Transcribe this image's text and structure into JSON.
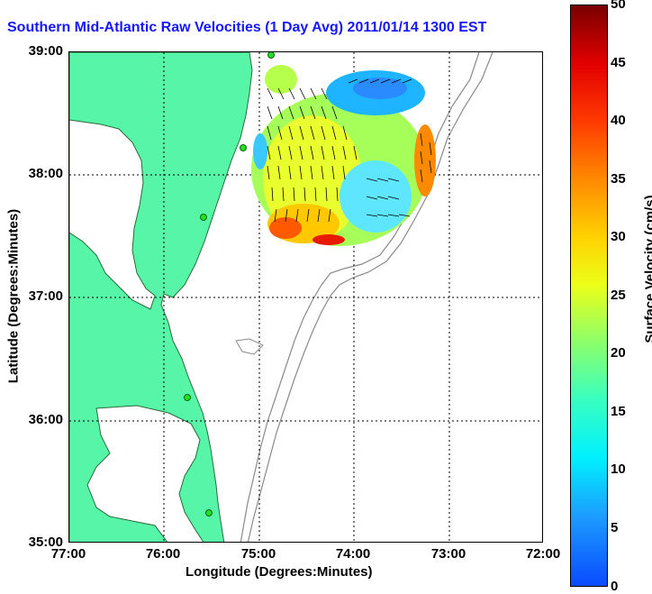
{
  "title": "Southern Mid-Atlantic Raw Velocities (1 Day Avg) 2011/01/14 1300 EST",
  "xlabel": "Longitude (Degrees:Minutes)",
  "ylabel": "Latitude (Degrees:Minutes)",
  "x_ticks": [
    "77:00",
    "76:00",
    "75:00",
    "74:00",
    "73:00",
    "72:00"
  ],
  "y_ticks": [
    "39:00",
    "38:00",
    "37:00",
    "36:00",
    "35:00"
  ],
  "colorbar": {
    "label": "Surface Velocity (cm/s)",
    "ticks": [
      "50",
      "45",
      "40",
      "35",
      "30",
      "25",
      "20",
      "15",
      "10",
      "5",
      "0"
    ],
    "range": [
      0,
      50
    ]
  },
  "colors": {
    "land": "#57f5a8",
    "water": "#ffffff",
    "coastline": "#2a6b3a",
    "bathymetry": "#8a8a8a",
    "title": "#1717ff",
    "station": "#22dd22"
  },
  "map": {
    "lon_range": [
      -77,
      -72
    ],
    "lat_range": [
      35,
      39
    ]
  }
}
